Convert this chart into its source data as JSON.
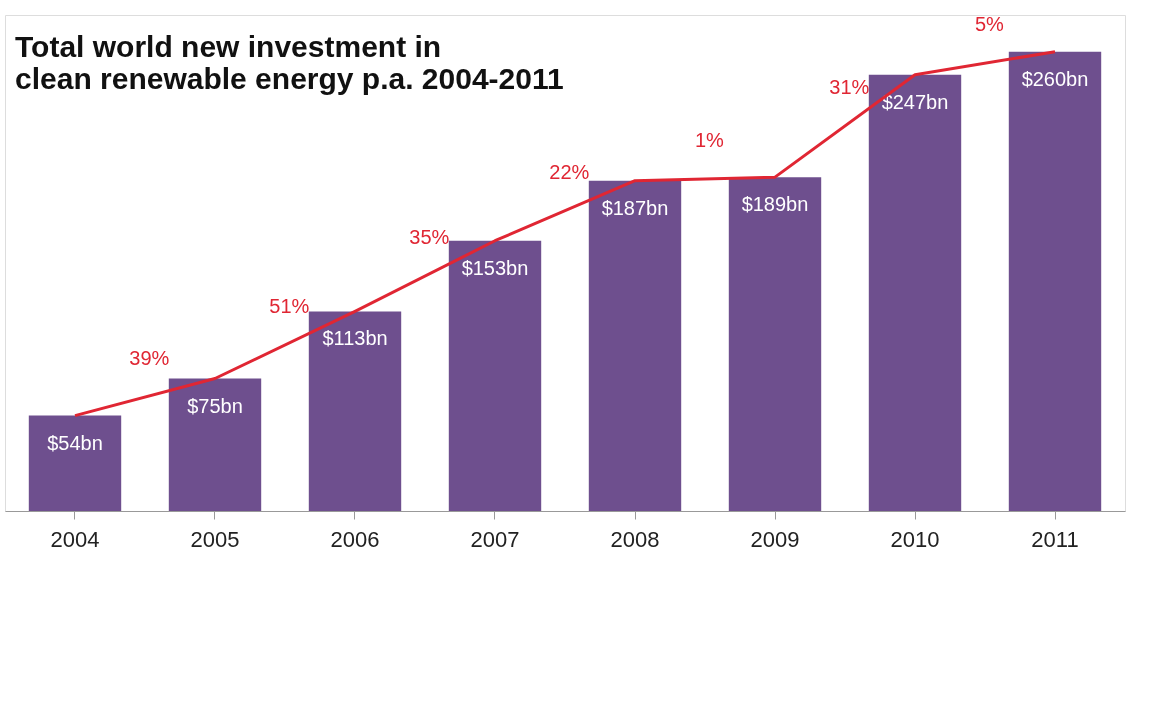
{
  "chart_data": {
    "type": "bar",
    "title": [
      "Total world new investment in",
      "clean renewable energy p.a. 2004-2011"
    ],
    "categories": [
      "2004",
      "2005",
      "2006",
      "2007",
      "2008",
      "2009",
      "2010",
      "2011"
    ],
    "series": [
      {
        "color": "#6e4f8e",
        "values": [
          54,
          75,
          113,
          153,
          187,
          189,
          247,
          260
        ],
        "value_labels": [
          "$54bn",
          "$75bn",
          "$113bn",
          "$153bn",
          "$187bn",
          "$189bn",
          "$247bn",
          "$260bn"
        ]
      },
      {
        "type": "line",
        "color": "#e02633",
        "values": [
          54,
          75,
          113,
          153,
          187,
          189,
          247,
          260
        ]
      }
    ],
    "annotations": [
      "39%",
      "51%",
      "35%",
      "22%",
      "1%",
      "31%",
      "5%"
    ],
    "grid": false
  }
}
